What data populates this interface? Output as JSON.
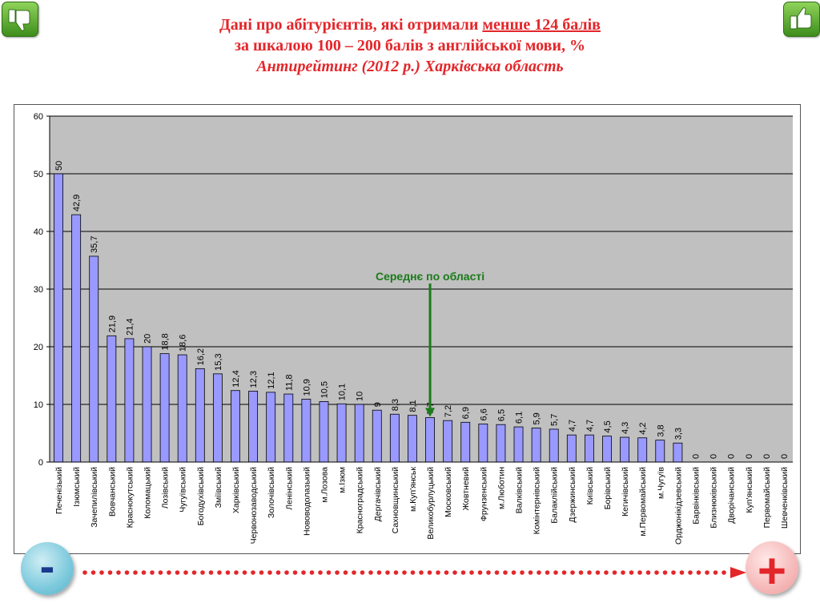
{
  "title": {
    "line1_prefix": "Дані про абітурієнтів, які отримали ",
    "line1_underlined": "менше 124 балів",
    "line2": "за шкалою 100 – 200 балів з англійської мови, %",
    "line3": "Антирейтинг (2012 р.) Харківська область"
  },
  "corner_icons": {
    "left": "thumbs-down-icon",
    "right": "thumbs-up-icon"
  },
  "scale": {
    "minus": "-",
    "plus": "+"
  },
  "annotation": {
    "label": "Середнє по області",
    "value": 7.7,
    "color": "#1a7a1a"
  },
  "colors": {
    "bar": "#9999ff",
    "plot_bg": "#c0c0c0",
    "title": "#e3262a",
    "arrow": "#e3262a"
  },
  "chart_data": {
    "type": "bar",
    "ylim": [
      0,
      60
    ],
    "yticks": [
      "0",
      "10",
      "20",
      "30",
      "40",
      "50",
      "60"
    ],
    "grid": true,
    "categories": [
      "Печенізький",
      "Ізюмський",
      "Зачепилівський",
      "Вовчанський",
      "Краснокутський",
      "Коломацький",
      "Лозівський",
      "Чугуївський",
      "Богодухівський",
      "Зміївський",
      "Харківський",
      "Червонозаводський",
      "Золочівський",
      "Ленінський",
      "Нововодолазький",
      "м.Лозова",
      "м.Ізюм",
      "Красноградський",
      "Дергачівський",
      "Сахновщинський",
      "м.Куп'янськ",
      "Великобурлуцький",
      "Московський",
      "Жовтневий",
      "Фрунзенський",
      "м.Люботин",
      "Валківський",
      "Комінтернівський",
      "Балаклійський",
      "Дзержинський",
      "Київський",
      "Борівський",
      "Кегичівський",
      "м.Первомайський",
      "м.Чугуїв",
      "Орджонікідзевський",
      "Барвінківський",
      "Близнюківський",
      "Дворічанський",
      "Куп'янський",
      "Первомайський",
      "Шевченківський"
    ],
    "values": [
      50,
      42.9,
      35.7,
      21.9,
      21.4,
      20,
      18.8,
      18.6,
      16.2,
      15.3,
      12.4,
      12.3,
      12.1,
      11.8,
      10.9,
      10.5,
      10.1,
      10,
      9,
      8.3,
      8.1,
      7.7,
      7.2,
      6.9,
      6.6,
      6.5,
      6.1,
      5.9,
      5.7,
      4.7,
      4.7,
      4.5,
      4.3,
      4.2,
      3.8,
      3.3,
      0,
      0,
      0,
      0,
      0,
      0
    ],
    "value_labels": [
      "50",
      "42,9",
      "35,7",
      "21,9",
      "21,4",
      "20",
      "18,8",
      "18,6",
      "16,2",
      "15,3",
      "12,4",
      "12,3",
      "12,1",
      "11,8",
      "10,9",
      "10,5",
      "10,1",
      "10",
      "9",
      "8,3",
      "8,1",
      "7,7",
      "7,2",
      "6,9",
      "6,6",
      "6,5",
      "6,1",
      "5,9",
      "5,7",
      "4,7",
      "4,7",
      "4,5",
      "4,3",
      "4,2",
      "3,8",
      "3,3",
      "0",
      "0",
      "0",
      "0",
      "0",
      "0"
    ]
  }
}
